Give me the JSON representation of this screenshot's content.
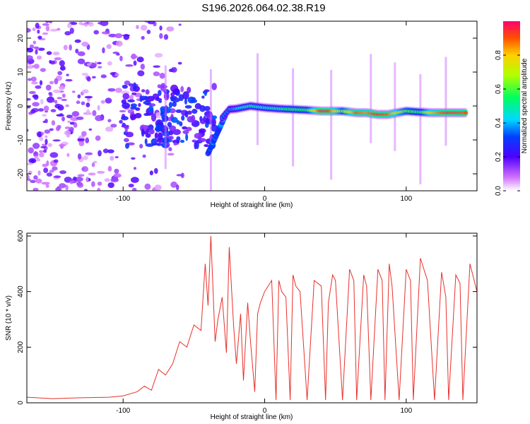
{
  "title": "S196.2026.064.02.38.R19",
  "colors": {
    "line": "#e8302a",
    "axis": "#000000",
    "background": "#ffffff"
  },
  "chart_data": [
    {
      "type": "heatmap",
      "xlabel": "Height of straight line (km)",
      "ylabel": "Frequency (Hz)",
      "xlim": [
        -168,
        150
      ],
      "ylim": [
        -25,
        25
      ],
      "xticks": [
        -100,
        0,
        100
      ],
      "xtick_labels": [
        "-100",
        "0",
        "100"
      ],
      "yticks": [
        -20,
        -10,
        0,
        10,
        20
      ],
      "ytick_labels": [
        "-20",
        "-10",
        "0",
        "10",
        "20"
      ],
      "colorbar": {
        "label": "Normalized spectral amplitude",
        "range": [
          0,
          1
        ],
        "ticks": [
          0.0,
          0.2,
          0.4,
          0.6,
          0.8
        ],
        "tick_labels": [
          "0.0",
          "0.2",
          "0.4",
          "0.6",
          "0.8"
        ]
      },
      "ridge": [
        {
          "x": -30,
          "y": -3.5,
          "a": 0.35
        },
        {
          "x": -25,
          "y": -1.0,
          "a": 0.35
        },
        {
          "x": -20,
          "y": -0.8,
          "a": 0.4
        },
        {
          "x": -10,
          "y": 0.0,
          "a": 0.5
        },
        {
          "x": 0,
          "y": -0.5,
          "a": 0.45
        },
        {
          "x": 10,
          "y": -0.8,
          "a": 0.5
        },
        {
          "x": 20,
          "y": -1.0,
          "a": 0.55
        },
        {
          "x": 30,
          "y": -1.2,
          "a": 0.55
        },
        {
          "x": 40,
          "y": -1.5,
          "a": 0.95
        },
        {
          "x": 45,
          "y": -1.5,
          "a": 0.95
        },
        {
          "x": 55,
          "y": -1.5,
          "a": 0.6
        },
        {
          "x": 65,
          "y": -2.0,
          "a": 0.9
        },
        {
          "x": 72,
          "y": -2.0,
          "a": 0.85
        },
        {
          "x": 80,
          "y": -2.5,
          "a": 0.95
        },
        {
          "x": 87,
          "y": -2.5,
          "a": 0.9
        },
        {
          "x": 100,
          "y": -1.5,
          "a": 0.6
        },
        {
          "x": 110,
          "y": -1.8,
          "a": 0.55
        },
        {
          "x": 118,
          "y": -2.0,
          "a": 0.8
        },
        {
          "x": 130,
          "y": -2.0,
          "a": 0.95
        },
        {
          "x": 143,
          "y": -2.0,
          "a": 0.9
        }
      ]
    },
    {
      "type": "line",
      "xlabel": "Height of straight line (km)",
      "ylabel": "SNR (10 * v/v)",
      "xlim": [
        -168,
        150
      ],
      "ylim": [
        0,
        610
      ],
      "xticks": [
        -100,
        0,
        100
      ],
      "xtick_labels": [
        "-100",
        "0",
        "100"
      ],
      "yticks": [
        0,
        200,
        400,
        600
      ],
      "ytick_labels": [
        "0",
        "200",
        "400",
        "600"
      ],
      "series": [
        {
          "name": "SNR",
          "x": [
            -168,
            -150,
            -130,
            -110,
            -100,
            -90,
            -85,
            -80,
            -75,
            -70,
            -65,
            -60,
            -55,
            -50,
            -45,
            -42,
            -40,
            -38,
            -35,
            -33,
            -30,
            -27,
            -25,
            -22,
            -20,
            -17,
            -15,
            -12,
            -10,
            -7,
            -5,
            -3,
            0,
            5,
            8,
            10,
            12,
            15,
            18,
            20,
            22,
            25,
            30,
            35,
            40,
            43,
            45,
            48,
            50,
            55,
            60,
            63,
            65,
            70,
            72,
            75,
            80,
            83,
            85,
            88,
            90,
            95,
            100,
            103,
            105,
            110,
            115,
            120,
            125,
            128,
            130,
            135,
            138,
            140,
            145,
            150
          ],
          "y": [
            20,
            15,
            18,
            20,
            25,
            40,
            60,
            45,
            120,
            100,
            140,
            220,
            200,
            280,
            260,
            500,
            350,
            600,
            220,
            300,
            380,
            180,
            560,
            280,
            140,
            320,
            80,
            360,
            220,
            40,
            320,
            360,
            400,
            440,
            10,
            440,
            400,
            380,
            10,
            460,
            420,
            400,
            10,
            440,
            420,
            10,
            360,
            460,
            440,
            10,
            480,
            440,
            10,
            460,
            420,
            10,
            480,
            440,
            10,
            500,
            420,
            10,
            480,
            440,
            10,
            520,
            440,
            10,
            470,
            380,
            10,
            460,
            430,
            10,
            500,
            400
          ]
        }
      ]
    }
  ]
}
